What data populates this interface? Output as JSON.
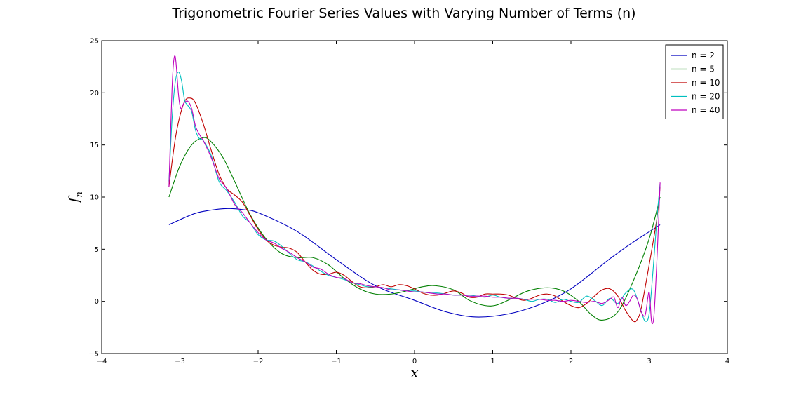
{
  "chart_data": {
    "type": "line",
    "title": "Trigonometric Fourier Series Values with Varying Number of Terms (n)",
    "xlabel": "x",
    "ylabel": "f_n",
    "xlim": [
      -4,
      4
    ],
    "ylim": [
      -5,
      25
    ],
    "x_ticks": [
      -4,
      -3,
      -2,
      -1,
      0,
      1,
      2,
      3,
      4
    ],
    "y_ticks": [
      -5,
      0,
      5,
      10,
      15,
      20,
      25
    ],
    "x_tick_labels": [
      "−4",
      "−3",
      "−2",
      "−1",
      "0",
      "1",
      "2",
      "3",
      "4"
    ],
    "y_tick_labels": [
      "−5",
      "0",
      "5",
      "10",
      "15",
      "20",
      "25"
    ],
    "grid": false,
    "legend_position": "top-right",
    "series": [
      {
        "name": "n = 2",
        "color": "#0000bf",
        "x": [
          -3.14,
          -2.8,
          -2.5,
          -2.35,
          -2.2,
          -2.0,
          -1.5,
          -1.0,
          -0.5,
          0.0,
          0.4,
          0.78,
          1.2,
          1.6,
          2.0,
          2.5,
          2.8,
          3.14
        ],
        "y": [
          7.35,
          8.45,
          8.85,
          8.9,
          8.8,
          8.5,
          6.7,
          4.0,
          1.5,
          0.1,
          -1.0,
          -1.5,
          -1.2,
          -0.3,
          1.2,
          4.1,
          5.7,
          7.35
        ]
      },
      {
        "name": "n = 5",
        "color": "#007f00",
        "x": [
          -3.14,
          -3.0,
          -2.85,
          -2.7,
          -2.6,
          -2.45,
          -2.3,
          -2.1,
          -1.9,
          -1.7,
          -1.5,
          -1.3,
          -1.1,
          -0.9,
          -0.7,
          -0.5,
          -0.3,
          -0.1,
          0.1,
          0.27,
          0.5,
          0.7,
          0.9,
          1.05,
          1.25,
          1.45,
          1.7,
          1.9,
          2.1,
          2.25,
          2.4,
          2.6,
          2.8,
          3.0,
          3.14
        ],
        "y": [
          10.0,
          13.0,
          15.0,
          15.7,
          15.3,
          13.8,
          11.5,
          8.3,
          6.0,
          4.6,
          4.2,
          4.2,
          3.5,
          2.2,
          1.2,
          0.7,
          0.7,
          1.0,
          1.4,
          1.5,
          1.1,
          0.1,
          -0.4,
          -0.35,
          0.3,
          1.0,
          1.3,
          1.0,
          0.0,
          -1.2,
          -1.8,
          -1.0,
          2.0,
          6.0,
          10.0
        ]
      },
      {
        "name": "n = 10",
        "color": "#bf0000",
        "x": [
          -3.14,
          -3.05,
          -2.95,
          -2.87,
          -2.8,
          -2.7,
          -2.6,
          -2.5,
          -2.4,
          -2.3,
          -2.2,
          -2.1,
          -2.0,
          -1.9,
          -1.8,
          -1.7,
          -1.6,
          -1.5,
          -1.4,
          -1.3,
          -1.2,
          -1.1,
          -1.0,
          -0.9,
          -0.8,
          -0.7,
          -0.6,
          -0.5,
          -0.4,
          -0.3,
          -0.2,
          -0.1,
          0.0,
          0.1,
          0.2,
          0.3,
          0.4,
          0.5,
          0.6,
          0.7,
          0.8,
          0.9,
          1.0,
          1.1,
          1.2,
          1.3,
          1.4,
          1.5,
          1.6,
          1.7,
          1.8,
          1.9,
          2.0,
          2.1,
          2.2,
          2.3,
          2.4,
          2.5,
          2.6,
          2.7,
          2.8,
          2.85,
          2.9,
          3.0,
          3.1,
          3.14
        ],
        "y": [
          11.0,
          16.0,
          19.0,
          19.5,
          19.0,
          17.0,
          14.5,
          12.2,
          10.8,
          10.2,
          9.5,
          8.2,
          6.9,
          5.9,
          5.4,
          5.2,
          5.1,
          4.7,
          3.8,
          3.0,
          2.6,
          2.6,
          2.8,
          2.5,
          1.9,
          1.4,
          1.3,
          1.4,
          1.6,
          1.4,
          1.6,
          1.5,
          1.2,
          0.8,
          0.6,
          0.6,
          0.8,
          1.0,
          0.8,
          0.4,
          0.4,
          0.7,
          0.7,
          0.7,
          0.6,
          0.3,
          0.1,
          0.3,
          0.6,
          0.7,
          0.5,
          0.0,
          -0.4,
          -0.6,
          -0.2,
          0.5,
          1.1,
          1.2,
          0.5,
          -0.9,
          -1.9,
          -1.7,
          -0.6,
          3.5,
          8.0,
          11.0
        ]
      },
      {
        "name": "n = 20",
        "color": "#00bfbf",
        "x": [
          -3.14,
          -3.1,
          -3.06,
          -3.02,
          -2.98,
          -2.94,
          -2.9,
          -2.85,
          -2.8,
          -2.75,
          -2.7,
          -2.6,
          -2.5,
          -2.4,
          -2.3,
          -2.2,
          -2.1,
          -2.0,
          -1.9,
          -1.8,
          -1.7,
          -1.6,
          -1.5,
          -1.4,
          -1.3,
          -1.2,
          -1.1,
          -1.0,
          -0.9,
          -0.8,
          -0.7,
          -0.6,
          -0.5,
          -0.4,
          -0.3,
          -0.2,
          -0.1,
          0.0,
          0.1,
          0.2,
          0.3,
          0.4,
          0.5,
          0.6,
          0.7,
          0.8,
          0.9,
          1.0,
          1.1,
          1.2,
          1.3,
          1.4,
          1.5,
          1.6,
          1.7,
          1.8,
          1.9,
          2.0,
          2.1,
          2.2,
          2.3,
          2.4,
          2.5,
          2.6,
          2.7,
          2.8,
          2.9,
          2.95,
          3.0,
          3.05,
          3.1,
          3.14
        ],
        "y": [
          11.5,
          17.5,
          21.0,
          22.0,
          21.2,
          19.3,
          18.8,
          18.2,
          16.4,
          15.6,
          15.4,
          14.0,
          11.5,
          10.6,
          9.5,
          8.2,
          7.5,
          6.4,
          5.9,
          5.8,
          5.3,
          4.6,
          4.0,
          3.8,
          3.4,
          2.9,
          2.5,
          2.3,
          2.1,
          1.8,
          1.6,
          1.4,
          1.4,
          1.3,
          1.2,
          1.1,
          1.0,
          1.0,
          0.9,
          0.8,
          0.8,
          0.7,
          0.6,
          0.6,
          0.6,
          0.5,
          0.4,
          0.6,
          0.4,
          0.3,
          0.3,
          0.2,
          0.0,
          0.2,
          0.2,
          -0.1,
          0.2,
          0.0,
          -0.1,
          0.5,
          0.1,
          -0.4,
          0.3,
          -0.2,
          0.8,
          1.1,
          -1.0,
          -1.9,
          -1.2,
          3.0,
          8.0,
          11.3
        ]
      },
      {
        "name": "n = 40",
        "color": "#bf00bf",
        "x": [
          -3.14,
          -3.12,
          -3.1,
          -3.08,
          -3.06,
          -3.04,
          -3.02,
          -3.0,
          -2.98,
          -2.95,
          -2.9,
          -2.85,
          -2.8,
          -2.75,
          -2.7,
          -2.6,
          -2.5,
          -2.4,
          -2.3,
          -2.2,
          -2.1,
          -2.0,
          -1.9,
          -1.8,
          -1.7,
          -1.6,
          -1.5,
          -1.4,
          -1.3,
          -1.2,
          -1.1,
          -1.0,
          -0.9,
          -0.8,
          -0.7,
          -0.6,
          -0.5,
          -0.4,
          -0.3,
          -0.2,
          -0.1,
          0.0,
          0.1,
          0.2,
          0.3,
          0.4,
          0.5,
          0.6,
          0.7,
          0.8,
          0.9,
          1.0,
          1.1,
          1.2,
          1.3,
          1.4,
          1.5,
          1.6,
          1.7,
          1.8,
          1.9,
          2.0,
          2.1,
          2.2,
          2.3,
          2.4,
          2.5,
          2.55,
          2.6,
          2.65,
          2.7,
          2.75,
          2.8,
          2.85,
          2.9,
          2.95,
          3.0,
          3.03,
          3.06,
          3.09,
          3.12,
          3.14
        ],
        "y": [
          11.0,
          16.0,
          20.5,
          23.0,
          23.5,
          22.0,
          20.0,
          18.8,
          18.5,
          19.0,
          19.2,
          18.5,
          16.8,
          16.0,
          15.4,
          13.8,
          11.8,
          10.8,
          9.3,
          8.5,
          7.5,
          6.6,
          5.9,
          5.6,
          5.1,
          4.7,
          4.2,
          3.8,
          3.3,
          3.1,
          2.6,
          2.3,
          2.2,
          1.8,
          1.7,
          1.5,
          1.4,
          1.3,
          1.1,
          1.1,
          1.0,
          0.9,
          0.9,
          0.8,
          0.7,
          0.7,
          0.6,
          0.6,
          0.5,
          0.5,
          0.5,
          0.4,
          0.4,
          0.3,
          0.3,
          0.2,
          0.2,
          0.2,
          0.1,
          0.1,
          0.0,
          0.1,
          0.0,
          -0.1,
          0.0,
          -0.2,
          0.2,
          0.4,
          -0.6,
          0.4,
          -0.4,
          0.0,
          0.6,
          0.2,
          -1.0,
          -1.3,
          0.9,
          -1.9,
          -1.5,
          2.5,
          7.5,
          11.4
        ]
      }
    ]
  }
}
